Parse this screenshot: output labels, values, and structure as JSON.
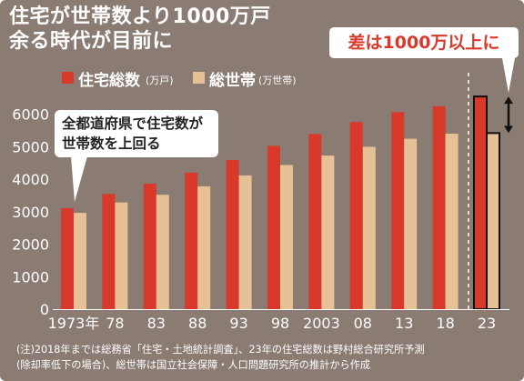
{
  "title": {
    "line1": "住宅が世帯数より1000万戸",
    "line2": "余る時代が目前に"
  },
  "legend": [
    {
      "label": "住宅総数",
      "unit": "(万戸)",
      "color": "#d8392b"
    },
    {
      "label": "総世帯",
      "unit": "(万世帯)",
      "color": "#e7c196"
    }
  ],
  "badge": "差は1000万以上に",
  "callout": {
    "line1": "全都道府県で住宅数が",
    "line2": "世帯数を上回る"
  },
  "notes": {
    "line1": "(注)2018年までは総務省「住宅・土地統計調査」、23年の住宅総数は野村総合研究所予測",
    "line2": "(除却率低下の場合)、総世帯は国立社会保障・人口問題研究所の推計から作成"
  },
  "chart_data": {
    "type": "bar",
    "categories": [
      "1973年",
      "78",
      "83",
      "88",
      "93",
      "98",
      "2003",
      "08",
      "13",
      "18",
      "23"
    ],
    "series": [
      {
        "name": "住宅総数",
        "values": [
          3106,
          3545,
          3861,
          4201,
          4588,
          5025,
          5389,
          5759,
          6063,
          6242,
          6546
        ],
        "color": "#d8392b"
      },
      {
        "name": "総世帯",
        "values": [
          2965,
          3284,
          3520,
          3781,
          4116,
          4436,
          4726,
          4997,
          5245,
          5400,
          5419
        ],
        "color": "#e7c196"
      }
    ],
    "yticks": [
      0,
      1000,
      2000,
      3000,
      4000,
      5000,
      6000
    ],
    "ylim": [
      0,
      6800
    ],
    "grid": false,
    "highlight_last": true
  }
}
